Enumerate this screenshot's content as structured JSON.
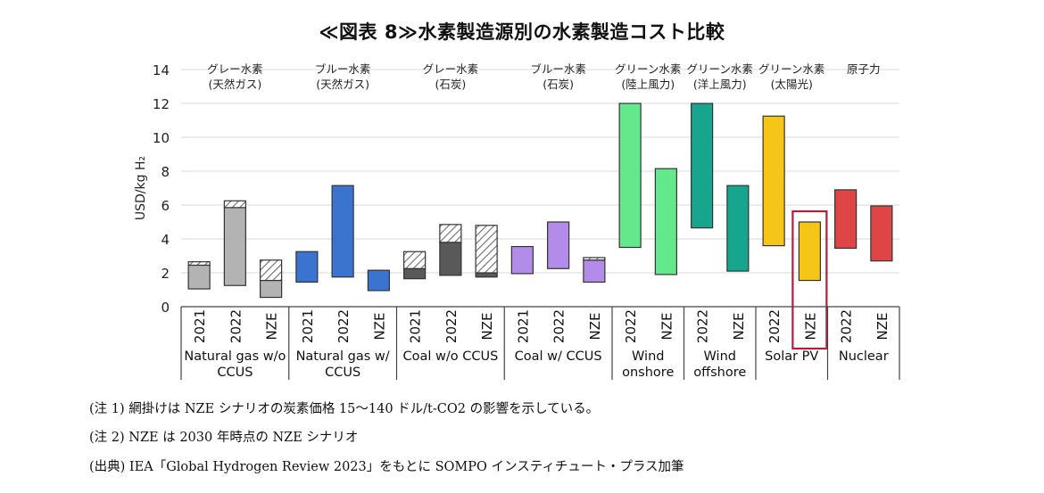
{
  "title": "≪図表 8≫水素製造源別の水素製造コスト比較",
  "notes": {
    "note1": "(注 1) 網掛けは NZE シナリオの炭素価格 15～140 ドル/t-CO2 の影響を示している。",
    "note2": "(注 2) NZE は 2030 年時点の NZE シナリオ",
    "source": "(出典) IEA「Global Hydrogen Review 2023」をもとに SOMPO インスティチュート・プラス加筆"
  },
  "chart_data": {
    "type": "bar",
    "subtype": "floating range bars with hatched carbon-price segment",
    "ylabel": "USD/kg H₂",
    "ylim": [
      0,
      14
    ],
    "yticks": [
      0,
      2,
      4,
      6,
      8,
      10,
      12,
      14
    ],
    "grid": true,
    "highlighted_bar": "Solar PV NZE",
    "groups": [
      {
        "top_label": [
          "グレー水素",
          "(天然ガス)"
        ],
        "name": [
          "Natural gas w/o",
          "CCUS"
        ],
        "color": "#b3b3b3",
        "bars": [
          {
            "label": "2021",
            "low": 1.05,
            "high": 2.45,
            "hatch_top": 2.65
          },
          {
            "label": "2022",
            "low": 1.25,
            "high": 5.85,
            "hatch_top": 6.25
          },
          {
            "label": "NZE",
            "low": 0.55,
            "high": 1.55,
            "hatch_top": 2.75
          }
        ]
      },
      {
        "top_label": [
          "ブルー水素",
          "(天然ガス)"
        ],
        "name": [
          "Natural gas w/",
          "CCUS"
        ],
        "color": "#3a73d0",
        "bars": [
          {
            "label": "2021",
            "low": 1.45,
            "high": 3.25
          },
          {
            "label": "2022",
            "low": 1.75,
            "high": 7.15
          },
          {
            "label": "NZE",
            "low": 0.95,
            "high": 2.15
          }
        ]
      },
      {
        "top_label": [
          "グレー水素",
          "(石炭)"
        ],
        "name": [
          "Coal w/o CCUS"
        ],
        "color": "#595959",
        "bars": [
          {
            "label": "2021",
            "low": 1.65,
            "high": 2.25,
            "hatch_top": 3.25
          },
          {
            "label": "2022",
            "low": 1.85,
            "high": 3.8,
            "hatch_top": 4.85
          },
          {
            "label": "NZE",
            "low": 1.75,
            "high": 2.0,
            "hatch_top": 4.8
          }
        ]
      },
      {
        "top_label": [
          "ブルー水素",
          "(石炭)"
        ],
        "name": [
          "Coal w/ CCUS"
        ],
        "color": "#b28ce8",
        "bars": [
          {
            "label": "2021",
            "low": 1.95,
            "high": 3.55
          },
          {
            "label": "2022",
            "low": 2.25,
            "high": 5.0
          },
          {
            "label": "NZE",
            "low": 1.45,
            "high": 2.75,
            "hatch_top": 2.9
          }
        ]
      },
      {
        "top_label": [
          "グリーン水素",
          "(陸上風力)"
        ],
        "name": [
          "Wind",
          "onshore"
        ],
        "color": "#63e88c",
        "bars": [
          {
            "label": "2022",
            "low": 3.5,
            "high": 12.0
          },
          {
            "label": "NZE",
            "low": 1.9,
            "high": 8.15
          }
        ]
      },
      {
        "top_label": [
          "グリーン水素",
          "(洋上風力)"
        ],
        "name": [
          "Wind",
          "offshore"
        ],
        "color": "#17a58e",
        "bars": [
          {
            "label": "2022",
            "low": 4.65,
            "high": 12.0
          },
          {
            "label": "NZE",
            "low": 2.1,
            "high": 7.15
          }
        ]
      },
      {
        "top_label": [
          "グリーン水素",
          "(太陽光)"
        ],
        "name": [
          "Solar PV"
        ],
        "color": "#f5c518",
        "bars": [
          {
            "label": "2022",
            "low": 3.6,
            "high": 11.25
          },
          {
            "label": "NZE",
            "low": 1.55,
            "high": 5.0
          }
        ]
      },
      {
        "top_label": [
          "原子力"
        ],
        "name": [
          "Nuclear"
        ],
        "color": "#e04545",
        "bars": [
          {
            "label": "2022",
            "low": 3.45,
            "high": 6.9
          },
          {
            "label": "NZE",
            "low": 2.7,
            "high": 5.95
          }
        ]
      }
    ]
  }
}
